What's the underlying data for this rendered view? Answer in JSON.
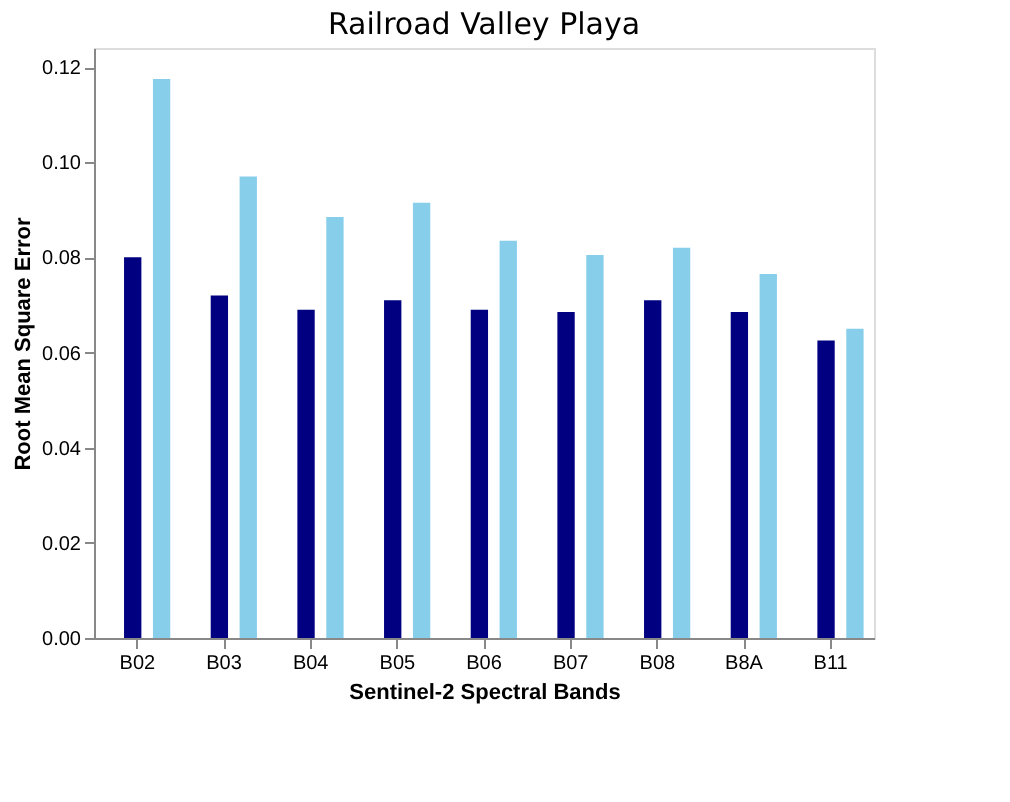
{
  "chart_data": {
    "type": "bar",
    "title": "Railroad Valley Playa",
    "xlabel": "Sentinel-2 Spectral Bands",
    "ylabel": "Root Mean Square Error",
    "categories": [
      "B02",
      "B03",
      "B04",
      "B05",
      "B06",
      "B07",
      "B08",
      "B8A",
      "B11"
    ],
    "series": [
      {
        "color": "#000080",
        "values": [
          0.08,
          0.072,
          0.069,
          0.071,
          0.069,
          0.0685,
          0.071,
          0.0685,
          0.0625
        ]
      },
      {
        "color": "#87ceeb",
        "values": [
          0.1175,
          0.097,
          0.0885,
          0.0915,
          0.0835,
          0.0805,
          0.082,
          0.0765,
          0.065
        ]
      }
    ],
    "ylim": [
      0,
      0.124
    ],
    "yticks": [
      {
        "value": 0,
        "label": "0.00"
      },
      {
        "value": 0.02,
        "label": "0.02"
      },
      {
        "value": 0.04,
        "label": "0.04"
      },
      {
        "value": 0.06,
        "label": "0.06"
      },
      {
        "value": 0.08,
        "label": "0.08"
      },
      {
        "value": 0.1,
        "label": "0.10"
      },
      {
        "value": 0.12,
        "label": "0.12"
      }
    ],
    "grid": false
  }
}
